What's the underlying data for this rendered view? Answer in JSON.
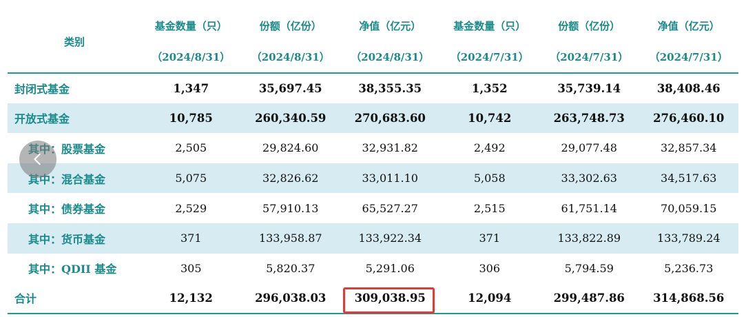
{
  "table": {
    "category_header": "类别",
    "column_headers": [
      {
        "label": "基金数量（只）",
        "date": "（2024/8/31）"
      },
      {
        "label": "份额（亿份）",
        "date": "（2024/8/31）"
      },
      {
        "label": "净值（亿元）",
        "date": "（2024/8/31）"
      },
      {
        "label": "基金数量（只）",
        "date": "（2024/7/31）"
      },
      {
        "label": "份额（亿份）",
        "date": "（2024/7/31）"
      },
      {
        "label": "净值（亿元）",
        "date": "（2024/7/31）"
      }
    ],
    "rows": [
      {
        "name": "封闭式基金",
        "values": [
          "1,347",
          "35,697.45",
          "38,355.35",
          "1,352",
          "35,739.14",
          "38,408.46"
        ]
      },
      {
        "name": "开放式基金",
        "values": [
          "10,785",
          "260,340.59",
          "270,683.60",
          "10,742",
          "263,748.73",
          "276,460.10"
        ]
      },
      {
        "name": "其中：股票基金",
        "values": [
          "2,505",
          "29,824.60",
          "32,931.82",
          "2,492",
          "29,077.48",
          "32,857.34"
        ]
      },
      {
        "name": "其中：混合基金",
        "values": [
          "5,075",
          "32,826.62",
          "33,011.10",
          "5,058",
          "33,302.63",
          "34,517.63"
        ]
      },
      {
        "name": "其中：债券基金",
        "values": [
          "2,529",
          "57,910.13",
          "65,527.27",
          "2,515",
          "61,751.14",
          "70,059.15"
        ]
      },
      {
        "name": "其中：货币基金",
        "values": [
          "371",
          "133,958.87",
          "133,922.34",
          "371",
          "133,822.89",
          "133,789.24"
        ]
      },
      {
        "name": "其中：QDII 基金",
        "values": [
          "305",
          "5,820.37",
          "5,291.06",
          "306",
          "5,794.59",
          "5,236.73"
        ]
      },
      {
        "name": "合计",
        "values": [
          "12,132",
          "296,038.03",
          "309,038.95",
          "12,094",
          "299,487.86",
          "314,868.56"
        ]
      }
    ]
  },
  "colors": {
    "header_text": "#1a8a8a",
    "row_alt_bg": "#d6ecf2",
    "highlight_border": "#e53935"
  },
  "icons": {
    "back": "chevron-left-icon"
  }
}
